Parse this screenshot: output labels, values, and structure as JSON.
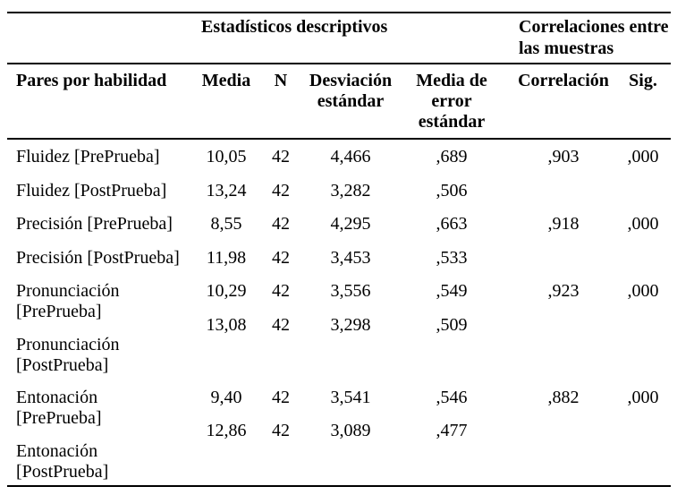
{
  "colors": {
    "background": "#ffffff",
    "text": "#000000",
    "rule": "#000000"
  },
  "table": {
    "group_headers": {
      "descriptive": "Estadísticos descriptivos",
      "correlations": "Correlaciones entre las muestras"
    },
    "columns": {
      "label": "Pares por habilidad",
      "media": "Media",
      "n": "N",
      "sd": "Desviación estándar",
      "se": "Media de error estándar",
      "corr": "Correlación",
      "sig": "Sig."
    },
    "pairs": [
      {
        "pre": {
          "label": "Fluidez [PrePrueba]",
          "media": "10,05",
          "n": "42",
          "sd": "4,466",
          "se": ",689"
        },
        "post": {
          "label": "Fluidez [PostPrueba]",
          "media": "13,24",
          "n": "42",
          "sd": "3,282",
          "se": ",506"
        },
        "corr": ",903",
        "sig": ",000"
      },
      {
        "pre": {
          "label": "Precisión [PrePrueba]",
          "media": "8,55",
          "n": "42",
          "sd": "4,295",
          "se": ",663"
        },
        "post": {
          "label": "Precisión [PostPrueba]",
          "media": "11,98",
          "n": "42",
          "sd": "3,453",
          "se": ",533"
        },
        "corr": ",918",
        "sig": ",000"
      },
      {
        "pre": {
          "label": "Pronunciación [PrePrueba]",
          "media": "10,29",
          "n": "42",
          "sd": "3,556",
          "se": ",549"
        },
        "post": {
          "label": "Pronunciación [PostPrueba]",
          "media": "13,08",
          "n": "42",
          "sd": "3,298",
          "se": ",509"
        },
        "corr": ",923",
        "sig": ",000"
      },
      {
        "pre": {
          "label": "Entonación [PrePrueba]",
          "media": "9,40",
          "n": "42",
          "sd": "3,541",
          "se": ",546"
        },
        "post": {
          "label": "Entonación [PostPrueba]",
          "media": "12,86",
          "n": "42",
          "sd": "3,089",
          "se": ",477"
        },
        "corr": ",882",
        "sig": ",000"
      }
    ]
  }
}
